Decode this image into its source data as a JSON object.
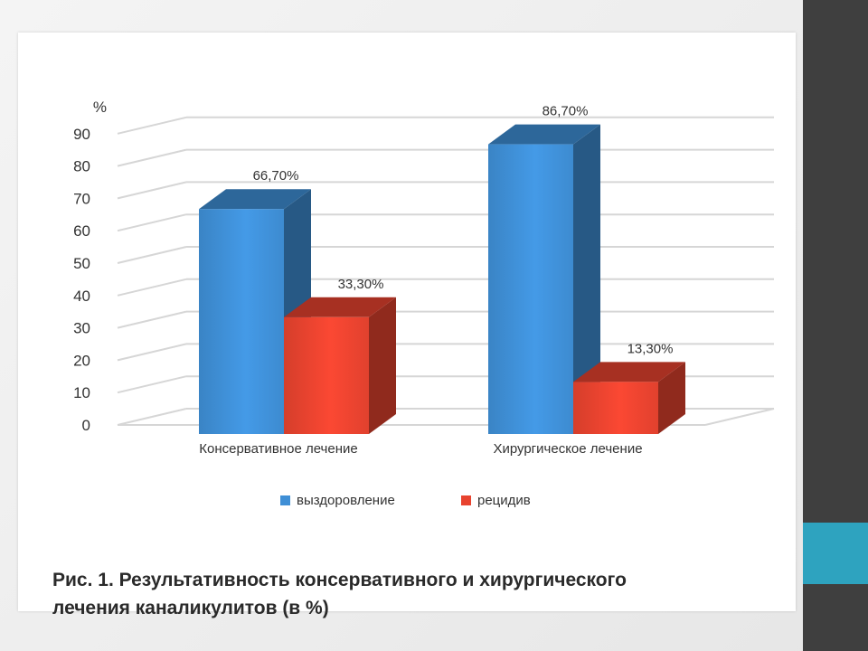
{
  "caption": {
    "line1": "Рис. 1. Результативность консервативного и хирургического",
    "line2": "лечения каналикулитов (в %)"
  },
  "colors": {
    "series1": "#3f8fd6",
    "series2": "#e8432f",
    "accent": "#2ea3bf",
    "sidebar": "#3f3f3f"
  },
  "chart_data": {
    "type": "bar",
    "ylabel": "%",
    "ylim": [
      0,
      90
    ],
    "yticks": [
      "0",
      "10",
      "20",
      "30",
      "40",
      "50",
      "60",
      "70",
      "80",
      "90"
    ],
    "grid": true,
    "three_d": true,
    "legend_position": "bottom",
    "categories": [
      "Консервативное лечение",
      "Хирургическое лечение"
    ],
    "series": [
      {
        "name": "выздоровление",
        "values": [
          66.7,
          86.7
        ],
        "labels": [
          "66,70%",
          "86,70%"
        ],
        "color": "#3f8fd6"
      },
      {
        "name": "рецидив",
        "values": [
          33.3,
          13.3
        ],
        "labels": [
          "33,30%",
          "13,30%"
        ],
        "color": "#e8432f"
      }
    ]
  }
}
